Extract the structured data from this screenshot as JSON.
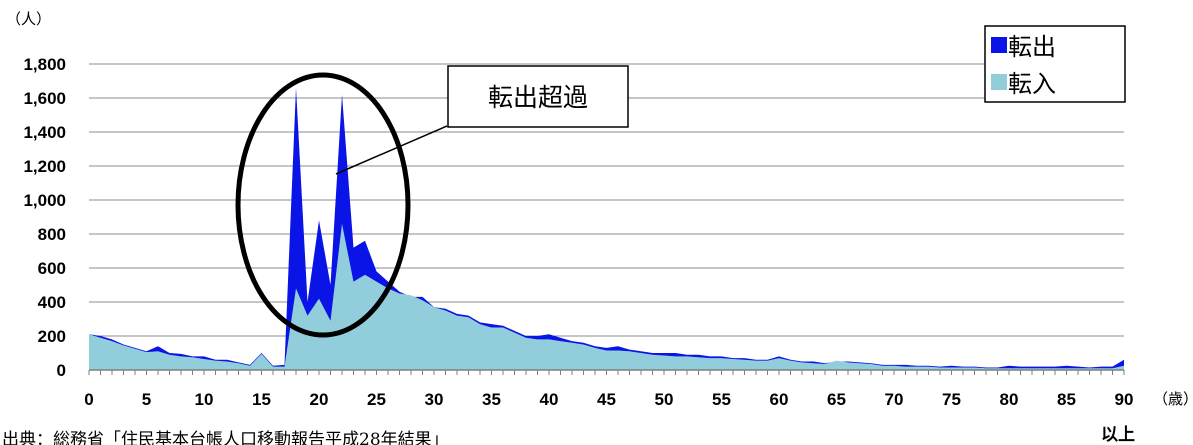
{
  "chart_data": {
    "type": "area",
    "y_unit": "（人）",
    "x_unit": "（歳）",
    "last_age_suffix": "以上",
    "ylim": [
      0,
      1800
    ],
    "y_ticks": [
      0,
      200,
      400,
      600,
      800,
      1000,
      1200,
      1400,
      1600,
      1800
    ],
    "y_tick_labels": [
      "0",
      "200",
      "400",
      "600",
      "800",
      "1,000",
      "1,200",
      "1,400",
      "1,600",
      "1,800"
    ],
    "x_ticks": [
      0,
      5,
      10,
      15,
      20,
      25,
      30,
      35,
      40,
      45,
      50,
      55,
      60,
      65,
      70,
      75,
      80,
      85,
      90
    ],
    "grid": true,
    "legend_position": "top-right",
    "annotation": "転出超過",
    "x": [
      0,
      1,
      2,
      3,
      4,
      5,
      6,
      7,
      8,
      9,
      10,
      11,
      12,
      13,
      14,
      15,
      16,
      17,
      18,
      19,
      20,
      21,
      22,
      23,
      24,
      25,
      26,
      27,
      28,
      29,
      30,
      31,
      32,
      33,
      34,
      35,
      36,
      37,
      38,
      39,
      40,
      41,
      42,
      43,
      44,
      45,
      46,
      47,
      48,
      49,
      50,
      51,
      52,
      53,
      54,
      55,
      56,
      57,
      58,
      59,
      60,
      61,
      62,
      63,
      64,
      65,
      66,
      67,
      68,
      69,
      70,
      71,
      72,
      73,
      74,
      75,
      76,
      77,
      78,
      79,
      80,
      81,
      82,
      83,
      84,
      85,
      86,
      87,
      88,
      89,
      90
    ],
    "series": [
      {
        "name": "転出",
        "color": "#0a14e6",
        "values": [
          210,
          200,
          180,
          150,
          130,
          110,
          140,
          100,
          95,
          80,
          80,
          60,
          60,
          45,
          30,
          100,
          25,
          30,
          1660,
          400,
          880,
          500,
          1620,
          720,
          760,
          580,
          520,
          460,
          430,
          430,
          370,
          360,
          330,
          320,
          280,
          270,
          260,
          230,
          200,
          200,
          210,
          190,
          170,
          160,
          140,
          130,
          140,
          120,
          110,
          100,
          100,
          100,
          90,
          90,
          80,
          80,
          70,
          70,
          60,
          60,
          80,
          60,
          50,
          50,
          40,
          50,
          50,
          45,
          40,
          30,
          30,
          30,
          25,
          25,
          20,
          25,
          20,
          20,
          15,
          15,
          25,
          20,
          20,
          20,
          20,
          25,
          20,
          15,
          20,
          20,
          60
        ]
      },
      {
        "name": "転入",
        "color": "#92cddc",
        "values": [
          210,
          190,
          170,
          145,
          125,
          105,
          110,
          90,
          80,
          75,
          65,
          55,
          50,
          40,
          25,
          95,
          20,
          20,
          480,
          320,
          420,
          290,
          860,
          520,
          560,
          520,
          480,
          450,
          440,
          410,
          370,
          350,
          320,
          310,
          270,
          250,
          250,
          220,
          190,
          180,
          180,
          170,
          160,
          150,
          130,
          115,
          115,
          110,
          100,
          90,
          85,
          80,
          80,
          75,
          70,
          70,
          65,
          60,
          55,
          55,
          70,
          55,
          45,
          40,
          35,
          55,
          45,
          40,
          35,
          25,
          25,
          20,
          20,
          20,
          15,
          15,
          15,
          15,
          10,
          10,
          10,
          10,
          10,
          10,
          10,
          10,
          10,
          10,
          10,
          10,
          25
        ]
      }
    ]
  },
  "source_note": "出典：総務省「住民基本台帳人口移動報告平成28年結果」"
}
